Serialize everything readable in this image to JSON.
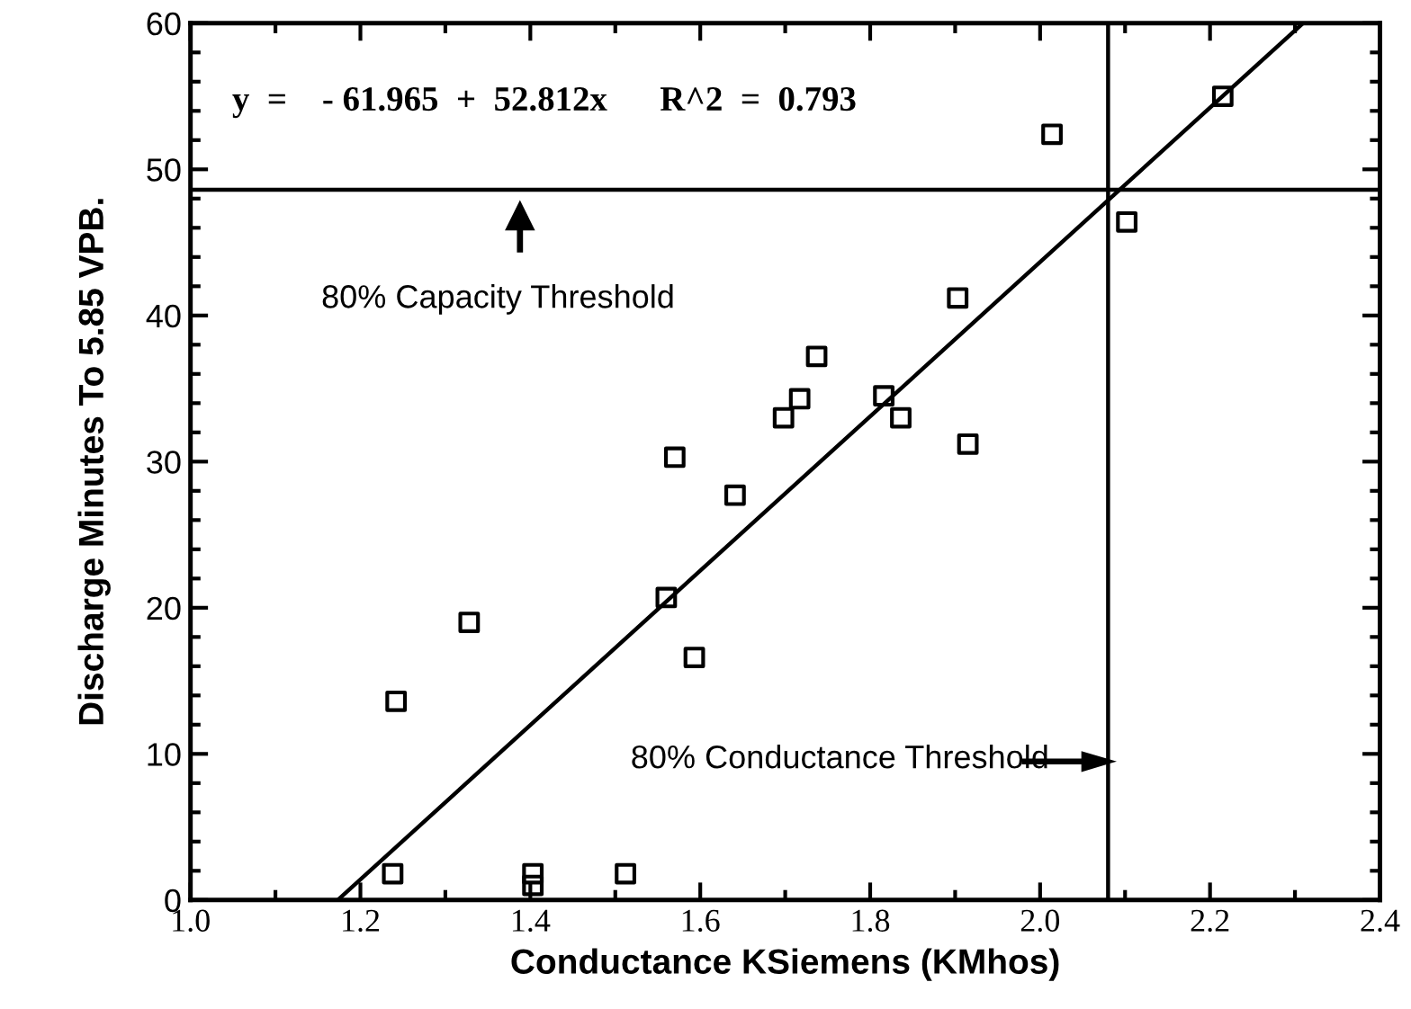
{
  "chart_data": {
    "type": "scatter",
    "xlabel": "Conductance KSiemens (KMhos)",
    "ylabel": "Discharge Minutes To 5.85 VPB.",
    "series": [
      {
        "color": "#000000",
        "marker": "square",
        "x": [
          2.014,
          2.215,
          2.102,
          1.903,
          1.737,
          1.717,
          1.698,
          1.816,
          1.836,
          1.915,
          1.57,
          1.641,
          1.56,
          1.593,
          1.328,
          1.242,
          1.238,
          1.403,
          1.403,
          1.512
        ],
        "values": [
          52.4,
          55.0,
          46.4,
          41.2,
          37.2,
          34.3,
          33.0,
          34.5,
          33.0,
          31.2,
          30.3,
          27.7,
          20.7,
          16.6,
          19.0,
          13.6,
          1.8,
          1.8,
          1.0,
          1.8
        ]
      },
      {
        "type": "line",
        "color": "#000000",
        "marker": "none",
        "x": [
          1.1733,
          2.3094
        ],
        "values": [
          0,
          60
        ]
      }
    ],
    "xlim": [
      1.0,
      2.4
    ],
    "xticks": [
      {
        "value": 1.0,
        "label": "1.0"
      },
      1.2,
      1.4,
      1.6,
      1.8,
      {
        "value": 2.0,
        "label": "2.0"
      },
      2.2,
      2.4
    ],
    "ylim": [
      0,
      60
    ],
    "yticks": [
      0,
      10,
      20,
      30,
      40,
      50,
      60
    ],
    "ref_lines": [
      {
        "axis": "y",
        "value": 48.6,
        "color": "#000000"
      },
      {
        "axis": "x",
        "value": 2.08,
        "color": "#000000"
      }
    ],
    "annotations": [
      "y  =    - 61.965  +  52.812x      R^2  =  0.793",
      "80% Capacity Threshold",
      "80% Conductance Threshold"
    ],
    "grid": false
  }
}
